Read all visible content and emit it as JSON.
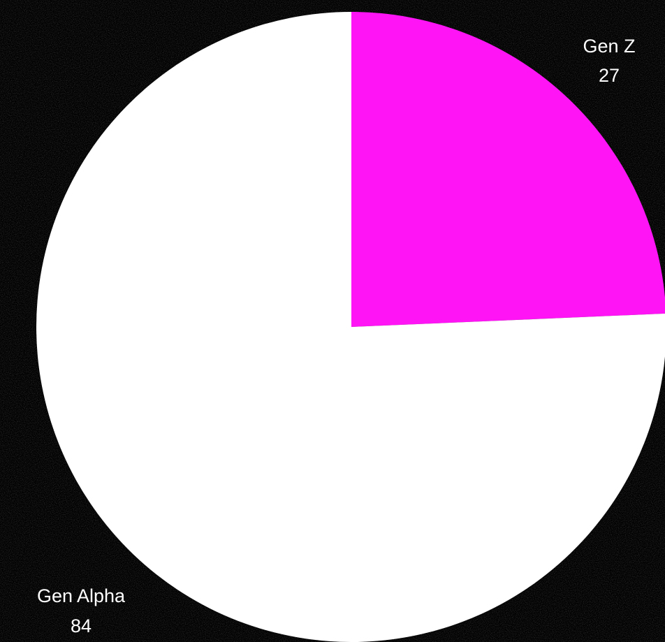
{
  "chart_data": {
    "type": "pie",
    "title": "",
    "slices": [
      {
        "label": "Gen Z",
        "value": 27,
        "color": "#ff14f5"
      },
      {
        "label": "Gen Alpha",
        "value": 84,
        "color": "#ffffff"
      }
    ],
    "start_angle_deg": 0,
    "direction": "clockwise",
    "background": "#000000",
    "label_color": "#ffffff"
  }
}
